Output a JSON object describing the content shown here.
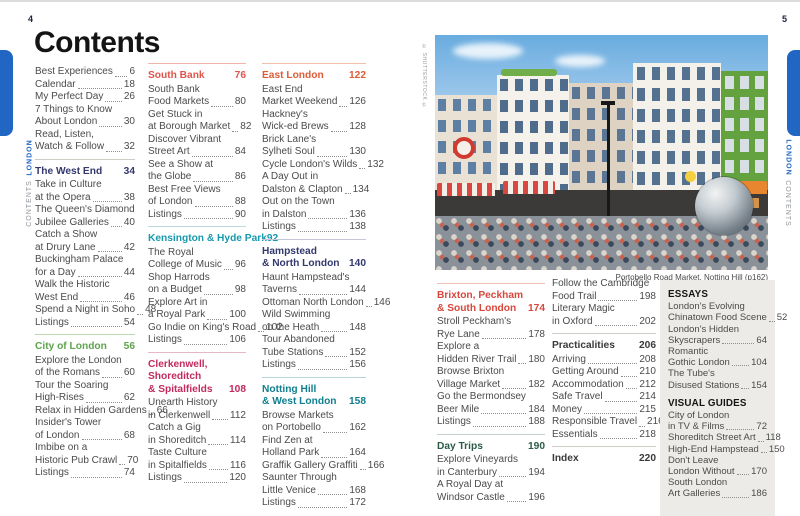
{
  "page_left": {
    "page_number": "4",
    "tab": {
      "region": "LONDON",
      "section": "CONTENTS"
    },
    "title": "Contents",
    "columns": {
      "c1": [
        {
          "entries": [
            {
              "lines": [
                "Best Experiences"
              ],
              "page": "6"
            },
            {
              "lines": [
                "Calendar"
              ],
              "page": "18"
            },
            {
              "lines": [
                "My Perfect Day"
              ],
              "page": "26"
            },
            {
              "lines": [
                "7 Things to Know",
                "About London"
              ],
              "page": "30"
            },
            {
              "lines": [
                "Read, Listen,",
                "Watch & Follow"
              ],
              "page": "32"
            }
          ]
        },
        {
          "rule": "#cfccc6",
          "title": [
            "The West End"
          ],
          "page": "34",
          "color": "#33386d",
          "entries": [
            {
              "lines": [
                "Take in Culture",
                "at the Opera"
              ],
              "page": "38"
            },
            {
              "lines": [
                "The Queen's Diamond",
                "Jubilee Galleries"
              ],
              "page": "40"
            },
            {
              "lines": [
                "Catch a Show",
                "at Drury Lane"
              ],
              "page": "42"
            },
            {
              "lines": [
                "Buckingham Palace",
                "for a Day"
              ],
              "page": "44"
            },
            {
              "lines": [
                "Walk the Historic",
                "West End"
              ],
              "page": "46"
            },
            {
              "lines": [
                "Spend a Night in Soho"
              ],
              "page": "48"
            },
            {
              "lines": [
                "Listings"
              ],
              "page": "54"
            }
          ]
        },
        {
          "rule": "#bcd6b0",
          "title": [
            "City of London"
          ],
          "page": "56",
          "color": "#5ea34e",
          "entries": [
            {
              "lines": [
                "Explore the London",
                "of the Romans"
              ],
              "page": "60"
            },
            {
              "lines": [
                "Tour the Soaring",
                "High-Rises"
              ],
              "page": "62"
            },
            {
              "lines": [
                "Relax in Hidden Gardens"
              ],
              "page": "66"
            },
            {
              "lines": [
                "Insider's Tower",
                "of London"
              ],
              "page": "68"
            },
            {
              "lines": [
                "Imbibe on a",
                "Historic Pub Crawl"
              ],
              "page": "70"
            },
            {
              "lines": [
                "Listings"
              ],
              "page": "74"
            }
          ]
        }
      ],
      "c2": [
        {
          "rule": "#f2b3aa",
          "title": [
            "South Bank"
          ],
          "page": "76",
          "color": "#e0554a",
          "entries": [
            {
              "lines": [
                "South Bank",
                "Food Markets"
              ],
              "page": "80"
            },
            {
              "lines": [
                "Get Stuck in",
                "at Borough Market"
              ],
              "page": "82"
            },
            {
              "lines": [
                "Discover Vibrant",
                "Street Art"
              ],
              "page": "84"
            },
            {
              "lines": [
                "See a Show at",
                "the Globe"
              ],
              "page": "86"
            },
            {
              "lines": [
                "Best Free Views",
                "of London"
              ],
              "page": "88"
            },
            {
              "lines": [
                "Listings"
              ],
              "page": "90"
            }
          ]
        },
        {
          "rule": "#bcd9de",
          "title": [
            "Kensington & Hyde Park"
          ],
          "page": "92",
          "color": "#1899ae",
          "entries": [
            {
              "lines": [
                "The Royal",
                "College of Music"
              ],
              "page": "96"
            },
            {
              "lines": [
                "Shop Harrods",
                "on a Budget"
              ],
              "page": "98"
            },
            {
              "lines": [
                "Explore Art in",
                "a Royal Park"
              ],
              "page": "100"
            },
            {
              "lines": [
                "Go Indie on King's Road"
              ],
              "page": "102"
            },
            {
              "lines": [
                "Listings"
              ],
              "page": "106"
            }
          ]
        },
        {
          "rule": "#e5b7c6",
          "title": [
            "Clerkenwell,",
            "Shoreditch",
            "& Spitalfields"
          ],
          "page": "108",
          "color": "#c22a5d",
          "entries": [
            {
              "lines": [
                "Unearth History",
                "in Clerkenwell"
              ],
              "page": "112"
            },
            {
              "lines": [
                "Catch a Gig",
                "in Shoreditch"
              ],
              "page": "114"
            },
            {
              "lines": [
                "Taste Culture",
                "in Spitalfields"
              ],
              "page": "116"
            },
            {
              "lines": [
                "Listings"
              ],
              "page": "120"
            }
          ]
        }
      ],
      "c3": [
        {
          "rule": "#f2c0a8",
          "title": [
            "East London"
          ],
          "page": "122",
          "color": "#dd5b35",
          "entries": [
            {
              "lines": [
                "East End",
                "Market Weekend"
              ],
              "page": "126"
            },
            {
              "lines": [
                "Hackney's",
                "Wick-ed Brews"
              ],
              "page": "128"
            },
            {
              "lines": [
                "Brick Lane's",
                "Sylheti Soul"
              ],
              "page": "130"
            },
            {
              "lines": [
                "Cycle London's Wilds"
              ],
              "page": "132"
            },
            {
              "lines": [
                "A Day Out in",
                "Dalston & Clapton"
              ],
              "page": "134"
            },
            {
              "lines": [
                "Out on the Town",
                "in Dalston"
              ],
              "page": "136"
            },
            {
              "lines": [
                "Listings"
              ],
              "page": "138"
            }
          ]
        },
        {
          "rule": "#c5c7d8",
          "title": [
            "Hampstead",
            "& North London"
          ],
          "page": "140",
          "color": "#33386d",
          "entries": [
            {
              "lines": [
                "Haunt Hampstead's",
                "Taverns"
              ],
              "page": "144"
            },
            {
              "lines": [
                "Ottoman North London"
              ],
              "page": "146"
            },
            {
              "lines": [
                "Wild Swimming",
                "on the Heath"
              ],
              "page": "148"
            },
            {
              "lines": [
                "Tour Abandoned",
                "Tube Stations"
              ],
              "page": "152"
            },
            {
              "lines": [
                "Listings"
              ],
              "page": "156"
            }
          ]
        },
        {
          "rule": "#b6d4d8",
          "title": [
            "Notting Hill",
            "& West London"
          ],
          "page": "158",
          "color": "#0f7f8e",
          "entries": [
            {
              "lines": [
                "Browse Markets",
                "on Portobello"
              ],
              "page": "162"
            },
            {
              "lines": [
                "Find Zen at",
                "Holland Park"
              ],
              "page": "164"
            },
            {
              "lines": [
                "Graffik Gallery Graffiti"
              ],
              "page": "166"
            },
            {
              "lines": [
                "Saunter Through",
                "Little Venice"
              ],
              "page": "168"
            },
            {
              "lines": [
                "Listings"
              ],
              "page": "172"
            }
          ]
        }
      ]
    }
  },
  "page_right": {
    "page_number": "5",
    "tab": {
      "region": "LONDON",
      "section": "CONTENTS"
    },
    "photo": {
      "caption": "Portobello Road Market, Notting Hill (p162)",
      "credit": "© SHUTTERSTOCK ©"
    },
    "columns": {
      "ca": [
        {
          "rule": "#efbdb4",
          "title": [
            "Brixton, Peckham",
            "& South London"
          ],
          "page": "174",
          "color": "#d7473c",
          "entries": [
            {
              "lines": [
                "Stroll Peckham's",
                "Rye Lane"
              ],
              "page": "178"
            },
            {
              "lines": [
                "Explore a",
                "Hidden River Trail"
              ],
              "page": "180"
            },
            {
              "lines": [
                "Browse Brixton",
                "Village Market"
              ],
              "page": "182"
            },
            {
              "lines": [
                "Go the Bermondsey",
                "Beer Mile"
              ],
              "page": "184"
            },
            {
              "lines": [
                "Listings"
              ],
              "page": "188"
            }
          ]
        },
        {
          "rule": "#c2cfc8",
          "title": [
            "Day Trips"
          ],
          "page": "190",
          "color": "#2a5c47",
          "entries": [
            {
              "lines": [
                "Explore Vineyards",
                "in Canterbury"
              ],
              "page": "194"
            },
            {
              "lines": [
                "A Royal Day at",
                "Windsor Castle"
              ],
              "page": "196"
            }
          ]
        }
      ],
      "cb": [
        {
          "entries": [
            {
              "lines": [
                "Follow the Cambridge",
                "Food Trail"
              ],
              "page": "198"
            },
            {
              "lines": [
                "Literary Magic",
                "in Oxford"
              ],
              "page": "202"
            }
          ]
        },
        {
          "rule": "#cfccc6",
          "title": [
            "Practicalities"
          ],
          "page": "206",
          "color": "#3a3a3a",
          "entries": [
            {
              "lines": [
                "Arriving"
              ],
              "page": "208"
            },
            {
              "lines": [
                "Getting Around"
              ],
              "page": "210"
            },
            {
              "lines": [
                "Accommodation"
              ],
              "page": "212"
            },
            {
              "lines": [
                "Safe Travel"
              ],
              "page": "214"
            },
            {
              "lines": [
                "Money"
              ],
              "page": "215"
            },
            {
              "lines": [
                "Responsible Travel"
              ],
              "page": "216"
            },
            {
              "lines": [
                "Essentials"
              ],
              "page": "218"
            }
          ]
        },
        {
          "rule": "#cfccc6",
          "title": [
            "Index"
          ],
          "page": "220",
          "color": "#3a3a3a",
          "entries": []
        }
      ]
    },
    "panel": [
      {
        "title": [
          "ESSAYS"
        ],
        "color": "#141414",
        "entries": [
          {
            "lines": [
              "London's Evolving",
              "Chinatown Food Scene"
            ],
            "page": "52"
          },
          {
            "lines": [
              "London's Hidden",
              "Skyscrapers"
            ],
            "page": "64"
          },
          {
            "lines": [
              "Romantic",
              "Gothic London"
            ],
            "page": "104"
          },
          {
            "lines": [
              "The Tube's",
              "Disused Stations"
            ],
            "page": "154"
          }
        ]
      },
      {
        "title": [
          "VISUAL GUIDES"
        ],
        "color": "#141414",
        "gap": true,
        "entries": [
          {
            "lines": [
              "City of London",
              "in TV & Films"
            ],
            "page": "72"
          },
          {
            "lines": [
              "Shoreditch Street Art"
            ],
            "page": "118"
          },
          {
            "lines": [
              "High-End Hampstead"
            ],
            "page": "150"
          },
          {
            "lines": [
              "Don't Leave",
              "London Without"
            ],
            "page": "170"
          },
          {
            "lines": [
              "South London",
              "Art Galleries"
            ],
            "page": "186"
          }
        ]
      }
    ]
  },
  "colors": {
    "tab_blue": "#2066c2",
    "accent_navy": "#33386d",
    "accent_green": "#5ea34e",
    "accent_red": "#e0554a",
    "accent_teal": "#1899ae",
    "accent_magenta": "#c22a5d",
    "accent_orange": "#dd5b35",
    "accent_dark_teal": "#0f7f8e",
    "panel_bg": "#edebe7"
  }
}
